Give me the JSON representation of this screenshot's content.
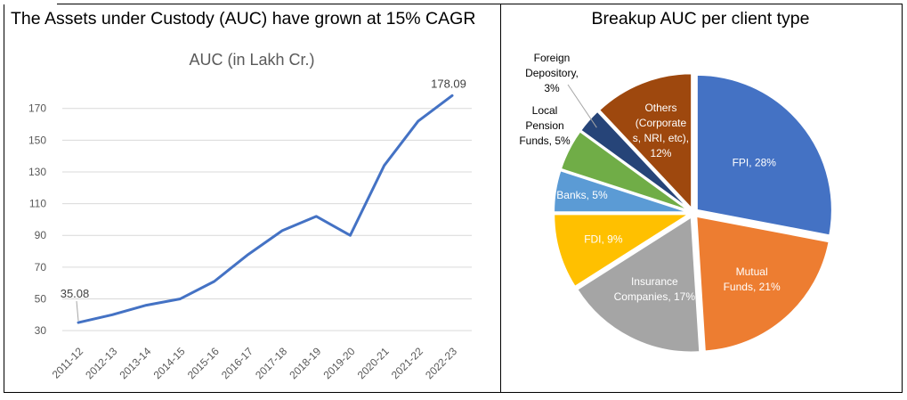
{
  "left_panel": {
    "title": "The Assets under Custody (AUC) have grown at 15% CAGR"
  },
  "right_panel": {
    "title": "Breakup AUC per client type"
  },
  "chart_data": [
    {
      "type": "line",
      "title": "AUC (in Lakh Cr.)",
      "xlabel": "",
      "ylabel": "",
      "categories": [
        "2011-12",
        "2012-13",
        "2013-14",
        "2014-15",
        "2015-16",
        "2016-17",
        "2017-18",
        "2018-19",
        "2019-20",
        "2020-21",
        "2021-22",
        "2022-23"
      ],
      "series": [
        {
          "values": [
            35.08,
            40,
            46,
            50,
            61,
            78,
            93,
            102,
            90,
            134,
            162,
            178.09
          ]
        }
      ],
      "data_labels": [
        {
          "index": 0,
          "text": "35.08"
        },
        {
          "index": 11,
          "text": "178.09"
        }
      ],
      "yticks": [
        30,
        50,
        70,
        90,
        110,
        130,
        150,
        170
      ],
      "ylim": [
        25,
        185
      ],
      "grid": true,
      "legend": "none",
      "color": "#4472C4"
    },
    {
      "type": "pie",
      "title": "",
      "slices": [
        {
          "label": "FPI, 28%",
          "value": 28,
          "color": "#4472C4"
        },
        {
          "label": "Mutual Funds, 21%",
          "value": 21,
          "color": "#ED7D31"
        },
        {
          "label": "Insurance Companies, 17%",
          "value": 17,
          "color": "#A5A5A5"
        },
        {
          "label": "FDI, 9%",
          "value": 9,
          "color": "#FFC000"
        },
        {
          "label": "Banks, 5%",
          "value": 5,
          "color": "#5B9BD5"
        },
        {
          "label": "Local Pension Funds, 5%",
          "value": 5,
          "color": "#70AD47"
        },
        {
          "label": "Foreign Depository, 3%",
          "value": 3,
          "color": "#264478"
        },
        {
          "label": "Others (Corporates, NRI, etc), 12%",
          "value": 12,
          "color": "#9E480E"
        }
      ],
      "legend": "none"
    }
  ]
}
